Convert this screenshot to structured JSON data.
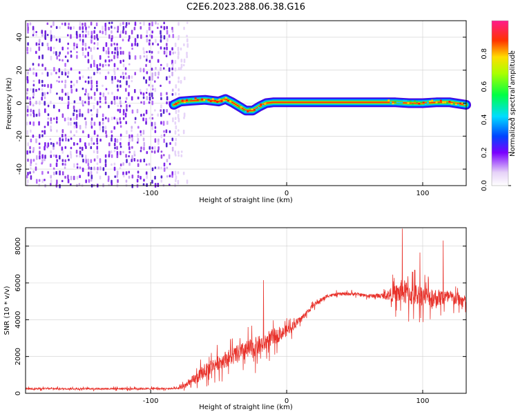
{
  "title": "C2E6.2023.288.06.38.G16",
  "colors": {
    "line": "#e8312a",
    "grid": "#cfcfcf",
    "axis": "#000000"
  },
  "chart_data": [
    {
      "type": "heatmap",
      "xlabel": "Height of straight line (km)",
      "ylabel": "Frequency (Hz)",
      "xlim": [
        -192,
        132
      ],
      "ylim": [
        -50,
        50
      ],
      "xticks": [
        -100,
        0,
        100
      ],
      "yticks": [
        -40,
        -20,
        0,
        20,
        40
      ],
      "colorbar": {
        "label": "Normalized spectral amplitude",
        "ticks": [
          "0.0",
          "0.2",
          "0.4",
          "0.6",
          "0.8"
        ],
        "range": [
          0,
          1
        ]
      },
      "noise_region": {
        "x_from": -192,
        "x_to": -80,
        "amplitude": 0.25
      },
      "ridge": [
        {
          "x": -83,
          "y": -1.0
        },
        {
          "x": -78,
          "y": 1.0
        },
        {
          "x": -70,
          "y": 1.5
        },
        {
          "x": -60,
          "y": 2.0
        },
        {
          "x": -50,
          "y": 1.0
        },
        {
          "x": -45,
          "y": 2.5
        },
        {
          "x": -40,
          "y": 0.5
        },
        {
          "x": -35,
          "y": -2.0
        },
        {
          "x": -30,
          "y": -4.5
        },
        {
          "x": -25,
          "y": -4.5
        },
        {
          "x": -20,
          "y": -2.0
        },
        {
          "x": -15,
          "y": 0.0
        },
        {
          "x": -10,
          "y": 0.5
        },
        {
          "x": 0,
          "y": 0.5
        },
        {
          "x": 70,
          "y": 0.5
        },
        {
          "x": 80,
          "y": 0.5
        },
        {
          "x": 90,
          "y": 0.0
        },
        {
          "x": 100,
          "y": 0.0
        },
        {
          "x": 110,
          "y": 0.5
        },
        {
          "x": 120,
          "y": 0.5
        },
        {
          "x": 132,
          "y": -1.0
        }
      ]
    },
    {
      "type": "line",
      "xlabel": "Height of straight line (km)",
      "ylabel": "SNR (10 * v/v)",
      "xlim": [
        -192,
        132
      ],
      "ylim": [
        0,
        9000
      ],
      "xticks": [
        -100,
        0,
        100
      ],
      "yticks": [
        0,
        2000,
        4000,
        6000,
        8000
      ],
      "series": [
        {
          "x": [
            -192,
            -80,
            -70,
            -60,
            -50,
            -40,
            -30,
            -20,
            -10,
            0,
            10,
            20,
            30,
            40,
            50,
            60,
            70,
            80,
            85,
            90,
            100,
            110,
            120,
            132
          ],
          "y": [
            250,
            250,
            600,
            1200,
            1700,
            2000,
            2300,
            2600,
            3000,
            3400,
            4000,
            4800,
            5300,
            5400,
            5400,
            5300,
            5300,
            5400,
            5500,
            5400,
            5300,
            5200,
            5200,
            5000
          ],
          "noise": [
            80,
            80,
            500,
            600,
            700,
            800,
            900,
            900,
            700,
            500,
            300,
            200,
            150,
            150,
            150,
            150,
            250,
            800,
            1200,
            1100,
            900,
            800,
            700,
            500
          ],
          "spikes": [
            {
              "x": -17,
              "y": 6150
            },
            {
              "x": 85,
              "y": 8950
            },
            {
              "x": 98,
              "y": 7650
            },
            {
              "x": 115,
              "y": 8300
            }
          ]
        }
      ]
    }
  ]
}
